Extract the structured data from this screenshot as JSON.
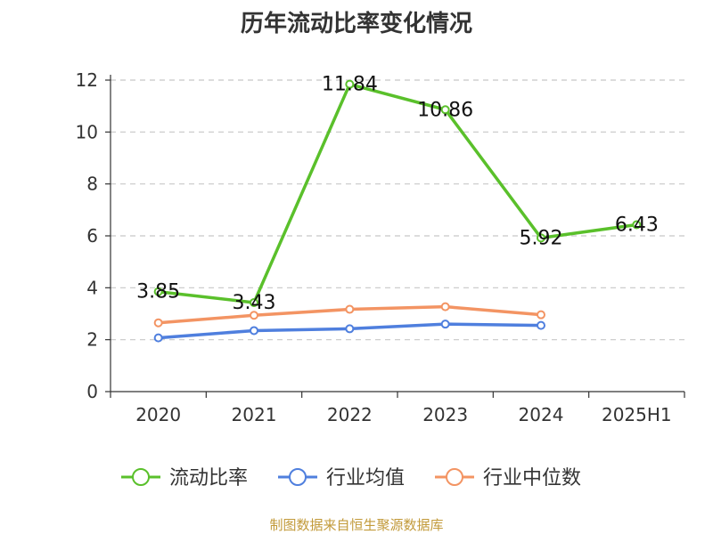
{
  "chart_data": {
    "type": "line",
    "title": "历年流动比率变化情况",
    "categories": [
      "2020",
      "2021",
      "2022",
      "2023",
      "2024",
      "2025H1"
    ],
    "ylim": [
      0,
      12
    ],
    "yticks": [
      "0",
      "2",
      "4",
      "6",
      "8",
      "10",
      "12"
    ],
    "grid": true,
    "legend_position": "bottom",
    "series": [
      {
        "name": "流动比率",
        "color": "#5ac02b",
        "values": [
          3.85,
          3.43,
          11.84,
          10.86,
          5.92,
          6.43
        ],
        "labels": [
          "3.85",
          "3.43",
          "11.84",
          "10.86",
          "5.92",
          "6.43"
        ]
      },
      {
        "name": "行业均值",
        "color": "#4f7fde",
        "values": [
          2.07,
          2.35,
          2.42,
          2.6,
          2.55,
          null
        ]
      },
      {
        "name": "行业中位数",
        "color": "#f39463",
        "values": [
          2.65,
          2.94,
          3.17,
          3.27,
          2.96,
          null
        ]
      }
    ]
  },
  "source": "制图数据来自恒生聚源数据库"
}
